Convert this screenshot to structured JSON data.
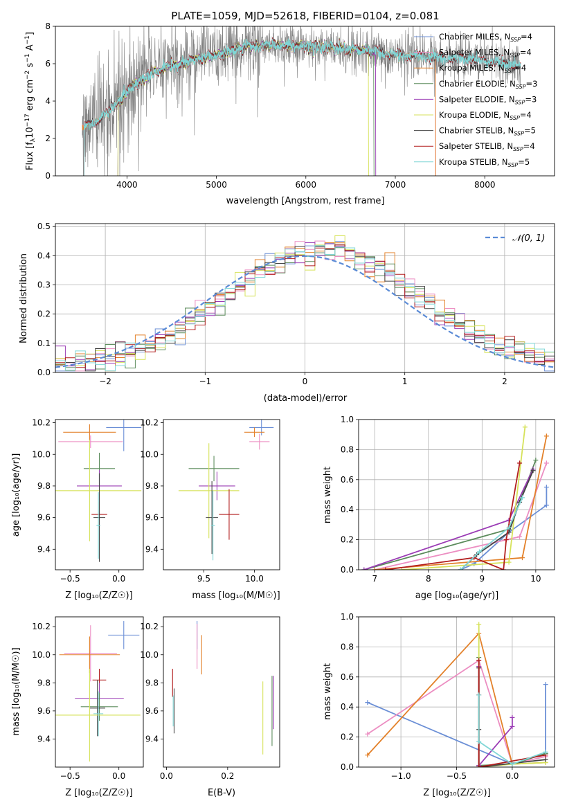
{
  "chart_data": [
    {
      "id": "spectrum",
      "type": "line",
      "title": "PLATE=1059, MJD=52618, FIBERID=0104, z=0.081",
      "xlabel": "wavelength [Angstrom, rest frame]",
      "ylabel_parts": [
        "Flux [f",
        "λ",
        "10",
        "−17",
        " erg cm",
        "−2",
        " s",
        "−1",
        " A",
        "−1",
        "]"
      ],
      "xlim": [
        3200,
        8780
      ],
      "ylim": [
        0,
        8
      ],
      "xticks": [
        4000,
        5000,
        6000,
        7000,
        8000
      ],
      "yticks": [
        0,
        2,
        4,
        6,
        8
      ],
      "data_range": [
        3500,
        8400
      ],
      "legend": [
        {
          "pre": "Chabrier MILES, N",
          "sub": "SSP",
          "post": "=4",
          "color": "#6b8fd6"
        },
        {
          "pre": "Salpeter MILES, N",
          "sub": "SSP",
          "post": "=4",
          "color": "#ec8ec2"
        },
        {
          "pre": "Kroupa MILES, N",
          "sub": "SSP",
          "post": "=4",
          "color": "#e3812a"
        },
        {
          "pre": "Chabrier ELODIE, N",
          "sub": "SSP",
          "post": "=3",
          "color": "#5b8b5b"
        },
        {
          "pre": "Salpeter ELODIE, N",
          "sub": "SSP",
          "post": "=3",
          "color": "#9b3cb5"
        },
        {
          "pre": "Kroupa ELODIE, N",
          "sub": "SSP",
          "post": "=4",
          "color": "#d6e25a"
        },
        {
          "pre": "Chabrier STELIB, N",
          "sub": "SSP",
          "post": "=5",
          "color": "#444444"
        },
        {
          "pre": "Salpeter STELIB, N",
          "sub": "SSP",
          "post": "=4",
          "color": "#b21e1e"
        },
        {
          "pre": "Kroupa STELIB, N",
          "sub": "SSP",
          "post": "=5",
          "color": "#7fd6d6"
        }
      ],
      "observed_color": "#808080",
      "continuum_knots": [
        [
          3500,
          2.6
        ],
        [
          3700,
          3.0
        ],
        [
          3900,
          4.0
        ],
        [
          4100,
          4.9
        ],
        [
          4300,
          5.6
        ],
        [
          4600,
          6.0
        ],
        [
          5000,
          6.5
        ],
        [
          5300,
          6.9
        ],
        [
          5600,
          7.0
        ],
        [
          6000,
          6.95
        ],
        [
          6500,
          6.8
        ],
        [
          6800,
          6.6
        ],
        [
          7000,
          6.45
        ],
        [
          7400,
          6.35
        ],
        [
          7800,
          6.3
        ],
        [
          8100,
          6.1
        ],
        [
          8400,
          5.9
        ]
      ],
      "model_edges": [
        {
          "from": 3500,
          "to": 8400
        },
        {
          "from": 3500,
          "to": 7450
        },
        {
          "from": 3500,
          "to": 7450
        },
        {
          "from": 3900,
          "to": 6760
        },
        {
          "from": 3900,
          "to": 6780
        },
        {
          "from": 3900,
          "to": 6700
        },
        {
          "from": 3520,
          "to": 8400
        },
        {
          "from": 3520,
          "to": 8400
        },
        {
          "from": 3520,
          "to": 8400
        }
      ]
    },
    {
      "id": "residuals",
      "type": "histogram",
      "xlabel": "(data-model)/error",
      "ylabel": "Normed distribution",
      "xlim": [
        -2.5,
        2.5
      ],
      "ylim": [
        0,
        0.51
      ],
      "xticks": [
        -2,
        -1,
        0,
        1,
        2
      ],
      "xtick_labels": [
        "−2",
        "−1",
        "0",
        "1",
        "2"
      ],
      "yticks": [
        0.0,
        0.1,
        0.2,
        0.3,
        0.4,
        0.5
      ],
      "ytick_labels": [
        "0.0",
        "0.1",
        "0.2",
        "0.3",
        "0.4",
        "0.5"
      ],
      "grid": true,
      "reference": {
        "label": "𝒩(0, 1)",
        "mean": 0,
        "sigma": 1,
        "color": "#5b8bd6",
        "dash": true
      },
      "bin_width": 0.1
    },
    {
      "id": "age-vs-Z",
      "type": "errorbar",
      "xlabel": "Z [log₁₀(Z/Z☉)]",
      "ylabel": "age  [log₁₀(age/yr)]",
      "xlim": [
        -0.65,
        0.25
      ],
      "ylim": [
        9.27,
        10.22
      ],
      "xticks": [
        -0.5,
        0.0
      ],
      "xtick_labels": [
        "−0.5",
        "0.0"
      ],
      "yticks": [
        9.4,
        9.6,
        9.8,
        10.0,
        10.2
      ],
      "ytick_labels": [
        "9.4",
        "9.6",
        "9.8",
        "10.0",
        "10.2"
      ],
      "points": [
        {
          "x": 0.05,
          "y": 10.17,
          "xerr": 0.18,
          "yerr": 0.15,
          "color": "#6b8fd6"
        },
        {
          "x": -0.3,
          "y": 10.14,
          "xerr": 0.27,
          "yerr": 0.05,
          "color": "#e3812a"
        },
        {
          "x": -0.29,
          "y": 10.08,
          "xerr": 0.33,
          "yerr": 0.04,
          "color": "#ec8ec2"
        },
        {
          "x": -0.2,
          "y": 9.91,
          "xerr": 0.16,
          "yerr": 0.1,
          "color": "#5b8b5b"
        },
        {
          "x": -0.2,
          "y": 9.8,
          "xerr": 0.23,
          "yerr": 0.1,
          "color": "#9b3cb5"
        },
        {
          "x": -0.3,
          "y": 9.77,
          "xerr": 0.53,
          "yerr": 0.32,
          "color": "#d6e25a"
        },
        {
          "x": -0.2,
          "y": 9.62,
          "xerr": 0.08,
          "yerr": 0.08,
          "color": "#b21e1e"
        },
        {
          "x": -0.2,
          "y": 9.6,
          "xerr": 0.06,
          "yerr": 0.28,
          "color": "#444444"
        },
        {
          "x": -0.21,
          "y": 9.55,
          "xerr": 0.02,
          "yerr": 0.21,
          "color": "#7fd6d6"
        }
      ]
    },
    {
      "id": "age-vs-mass",
      "type": "errorbar",
      "xlabel": "mass [log₁₀(M/M☉)]",
      "ylabel": "",
      "xlim": [
        9.1,
        10.25
      ],
      "ylim": [
        9.27,
        10.22
      ],
      "xticks": [
        9.5,
        10.0
      ],
      "xtick_labels": [
        "9.5",
        "10.0"
      ],
      "yticks": [
        9.4,
        9.6,
        9.8,
        10.0,
        10.2
      ],
      "ytick_labels": [
        "9.4",
        "9.6",
        "9.8",
        "10.0",
        "10.2"
      ],
      "points": [
        {
          "x": 10.07,
          "y": 10.17,
          "xerr": 0.12,
          "yerr": 0.05,
          "color": "#6b8fd6"
        },
        {
          "x": 10.0,
          "y": 10.14,
          "xerr": 0.1,
          "yerr": 0.03,
          "color": "#e3812a"
        },
        {
          "x": 10.05,
          "y": 10.08,
          "xerr": 0.1,
          "yerr": 0.05,
          "color": "#ec8ec2"
        },
        {
          "x": 9.6,
          "y": 9.91,
          "xerr": 0.25,
          "yerr": 0.08,
          "color": "#5b8b5b"
        },
        {
          "x": 9.63,
          "y": 9.8,
          "xerr": 0.18,
          "yerr": 0.09,
          "color": "#9b3cb5"
        },
        {
          "x": 9.55,
          "y": 9.77,
          "xerr": 0.3,
          "yerr": 0.3,
          "color": "#d6e25a"
        },
        {
          "x": 9.75,
          "y": 9.62,
          "xerr": 0.1,
          "yerr": 0.16,
          "color": "#b21e1e"
        },
        {
          "x": 9.58,
          "y": 9.6,
          "xerr": 0.06,
          "yerr": 0.23,
          "color": "#444444"
        },
        {
          "x": 9.59,
          "y": 9.55,
          "xerr": 0.02,
          "yerr": 0.22,
          "color": "#7fd6d6"
        }
      ]
    },
    {
      "id": "mass-weight-vs-age",
      "type": "line",
      "xlabel": "age  [log₁₀(age/yr)]",
      "ylabel": "mass weight",
      "xlim": [
        6.7,
        10.35
      ],
      "ylim": [
        0.0,
        1.0
      ],
      "xticks": [
        7,
        8,
        9,
        10
      ],
      "xtick_labels": [
        "7",
        "8",
        "9",
        "10"
      ],
      "yticks": [
        0.0,
        0.2,
        0.4,
        0.6,
        0.8,
        1.0
      ],
      "ytick_labels": [
        "0.0",
        "0.2",
        "0.4",
        "0.6",
        "0.8",
        "1.0"
      ],
      "grid": true,
      "series": [
        {
          "color": "#6b8fd6",
          "points": [
            [
              8.6,
              0.0
            ],
            [
              8.85,
              0.04
            ],
            [
              9.5,
              0.25
            ],
            [
              10.2,
              0.43
            ],
            [
              10.2,
              0.55
            ]
          ]
        },
        {
          "color": "#ec8ec2",
          "points": [
            [
              7.0,
              0.0
            ],
            [
              9.7,
              0.22
            ],
            [
              10.2,
              0.71
            ]
          ]
        },
        {
          "color": "#e3812a",
          "points": [
            [
              7.0,
              0.0
            ],
            [
              9.75,
              0.08
            ],
            [
              10.2,
              0.89
            ]
          ]
        },
        {
          "color": "#5b8b5b",
          "points": [
            [
              6.8,
              0.0
            ],
            [
              9.5,
              0.27
            ],
            [
              10.0,
              0.73
            ]
          ]
        },
        {
          "color": "#9b3cb5",
          "points": [
            [
              6.8,
              0.0
            ],
            [
              9.5,
              0.33
            ],
            [
              9.95,
              0.67
            ]
          ]
        },
        {
          "color": "#d6e25a",
          "points": [
            [
              7.5,
              0.0
            ],
            [
              9.5,
              0.05
            ],
            [
              9.8,
              0.95
            ]
          ]
        },
        {
          "color": "#444444",
          "points": [
            [
              8.6,
              0.0
            ],
            [
              8.9,
              0.1
            ],
            [
              9.5,
              0.25
            ],
            [
              9.7,
              0.45
            ],
            [
              9.95,
              0.66
            ]
          ]
        },
        {
          "color": "#b21e1e",
          "points": [
            [
              7.2,
              0.0
            ],
            [
              8.85,
              0.08
            ],
            [
              9.4,
              0.0
            ],
            [
              9.45,
              0.2
            ],
            [
              9.7,
              0.71
            ]
          ]
        },
        {
          "color": "#7fd6d6",
          "points": [
            [
              8.6,
              0.0
            ],
            [
              8.95,
              0.12
            ],
            [
              9.5,
              0.28
            ],
            [
              9.75,
              0.48
            ]
          ]
        }
      ]
    },
    {
      "id": "mass-vs-Z",
      "type": "errorbar",
      "xlabel": "Z [log₁₀(Z/Z☉)]",
      "ylabel": "mass [log₁₀(M/M☉)]",
      "xlim": [
        -0.65,
        0.25
      ],
      "ylim": [
        9.2,
        10.27
      ],
      "xticks": [
        -0.5,
        0.0
      ],
      "xtick_labels": [
        "−0.5",
        "0.0"
      ],
      "yticks": [
        9.4,
        9.6,
        9.8,
        10.0,
        10.2
      ],
      "ytick_labels": [
        "9.4",
        "9.6",
        "9.8",
        "10.0",
        "10.2"
      ],
      "points": [
        {
          "x": 0.05,
          "y": 10.14,
          "xerr": 0.16,
          "yerr": 0.1,
          "color": "#6b8fd6"
        },
        {
          "x": -0.29,
          "y": 10.01,
          "xerr": 0.27,
          "yerr": 0.2,
          "color": "#ec8ec2"
        },
        {
          "x": -0.3,
          "y": 10.0,
          "xerr": 0.31,
          "yerr": 0.13,
          "color": "#e3812a"
        },
        {
          "x": -0.2,
          "y": 9.82,
          "xerr": 0.07,
          "yerr": 0.08,
          "color": "#b21e1e"
        },
        {
          "x": -0.2,
          "y": 9.69,
          "xerr": 0.25,
          "yerr": 0.11,
          "color": "#9b3cb5"
        },
        {
          "x": -0.2,
          "y": 9.63,
          "xerr": 0.19,
          "yerr": 0.1,
          "color": "#5b8b5b"
        },
        {
          "x": -0.22,
          "y": 9.62,
          "xerr": 0.08,
          "yerr": 0.2,
          "color": "#444444"
        },
        {
          "x": -0.3,
          "y": 9.57,
          "xerr": 0.52,
          "yerr": 0.33,
          "color": "#d6e25a"
        },
        {
          "x": -0.21,
          "y": 9.58,
          "xerr": 0.05,
          "yerr": 0.16,
          "color": "#7fd6d6"
        }
      ]
    },
    {
      "id": "mass-vs-ebv",
      "type": "errorbar",
      "xlabel": "E(B-V)",
      "ylabel": "",
      "xlim": [
        -0.01,
        0.37
      ],
      "ylim": [
        9.2,
        10.27
      ],
      "xticks": [
        0.0,
        0.2
      ],
      "xtick_labels": [
        "0.0",
        "0.2"
      ],
      "yticks": [
        9.4,
        9.6,
        9.8,
        10.0,
        10.2
      ],
      "ytick_labels": [
        "9.4",
        "9.6",
        "9.8",
        "10.0",
        "10.2"
      ],
      "points": [
        {
          "x": 0.1,
          "y": 10.14,
          "xerr": 0.0,
          "yerr": 0.1,
          "color": "#6b8fd6"
        },
        {
          "x": 0.1,
          "y": 10.06,
          "xerr": 0.0,
          "yerr": 0.16,
          "color": "#ec8ec2"
        },
        {
          "x": 0.115,
          "y": 10.0,
          "xerr": 0.0,
          "yerr": 0.14,
          "color": "#e3812a"
        },
        {
          "x": 0.02,
          "y": 9.8,
          "xerr": 0.0,
          "yerr": 0.1,
          "color": "#b21e1e"
        },
        {
          "x": 0.35,
          "y": 9.66,
          "xerr": 0.0,
          "yerr": 0.19,
          "color": "#9b3cb5"
        },
        {
          "x": 0.345,
          "y": 9.6,
          "xerr": 0.0,
          "yerr": 0.25,
          "color": "#5b8b5b"
        },
        {
          "x": 0.025,
          "y": 9.6,
          "xerr": 0.0,
          "yerr": 0.16,
          "color": "#444444"
        },
        {
          "x": 0.315,
          "y": 9.55,
          "xerr": 0.0,
          "yerr": 0.26,
          "color": "#d6e25a"
        },
        {
          "x": 0.022,
          "y": 9.6,
          "xerr": 0.0,
          "yerr": 0.11,
          "color": "#7fd6d6"
        }
      ]
    },
    {
      "id": "mass-weight-vs-Z",
      "type": "line",
      "xlabel": "Z [log₁₀(Z/Z☉)]",
      "ylabel": "mass weight",
      "xlim": [
        -1.38,
        0.38
      ],
      "ylim": [
        0.0,
        1.0
      ],
      "xticks": [
        -1.0,
        -0.5,
        0.0
      ],
      "xtick_labels": [
        "−1.0",
        "−0.5",
        "0.0"
      ],
      "yticks": [
        0.0,
        0.2,
        0.4,
        0.6,
        0.8,
        1.0
      ],
      "ytick_labels": [
        "0.0",
        "0.2",
        "0.4",
        "0.6",
        "0.8",
        "1.0"
      ],
      "grid": true,
      "series": [
        {
          "color": "#6b8fd6",
          "points": [
            [
              -1.3,
              0.43
            ],
            [
              0.0,
              0.02
            ],
            [
              0.3,
              0.09
            ],
            [
              0.3,
              0.55
            ]
          ]
        },
        {
          "color": "#ec8ec2",
          "points": [
            [
              -1.3,
              0.22
            ],
            [
              -0.3,
              0.71
            ],
            [
              0.0,
              0.02
            ],
            [
              0.3,
              0.07
            ]
          ]
        },
        {
          "color": "#e3812a",
          "points": [
            [
              -1.3,
              0.08
            ],
            [
              -0.3,
              0.89
            ],
            [
              0.0,
              0.02
            ],
            [
              0.3,
              0.03
            ]
          ]
        },
        {
          "color": "#5b8b5b",
          "points": [
            [
              -0.3,
              0.73
            ],
            [
              -0.3,
              0.01
            ],
            [
              0.0,
              0.02
            ],
            [
              0.3,
              0.09
            ]
          ]
        },
        {
          "color": "#9b3cb5",
          "points": [
            [
              -0.3,
              0.67
            ],
            [
              -0.3,
              0.01
            ],
            [
              0.0,
              0.27
            ],
            [
              0.0,
              0.33
            ]
          ]
        },
        {
          "color": "#d6e25a",
          "points": [
            [
              -0.3,
              0.95
            ],
            [
              -0.3,
              0.0
            ],
            [
              0.0,
              0.02
            ],
            [
              0.3,
              0.03
            ]
          ]
        },
        {
          "color": "#444444",
          "points": [
            [
              -0.3,
              0.66
            ],
            [
              -0.3,
              0.25
            ],
            [
              -0.3,
              0.0
            ],
            [
              0.3,
              0.05
            ]
          ]
        },
        {
          "color": "#b21e1e",
          "points": [
            [
              -0.3,
              0.71
            ],
            [
              -0.3,
              0.48
            ],
            [
              -0.3,
              0.0
            ],
            [
              0.3,
              0.08
            ]
          ]
        },
        {
          "color": "#7fd6d6",
          "points": [
            [
              -0.3,
              0.48
            ],
            [
              -0.3,
              0.17
            ],
            [
              0.0,
              0.02
            ],
            [
              0.3,
              0.1
            ]
          ]
        }
      ]
    }
  ]
}
